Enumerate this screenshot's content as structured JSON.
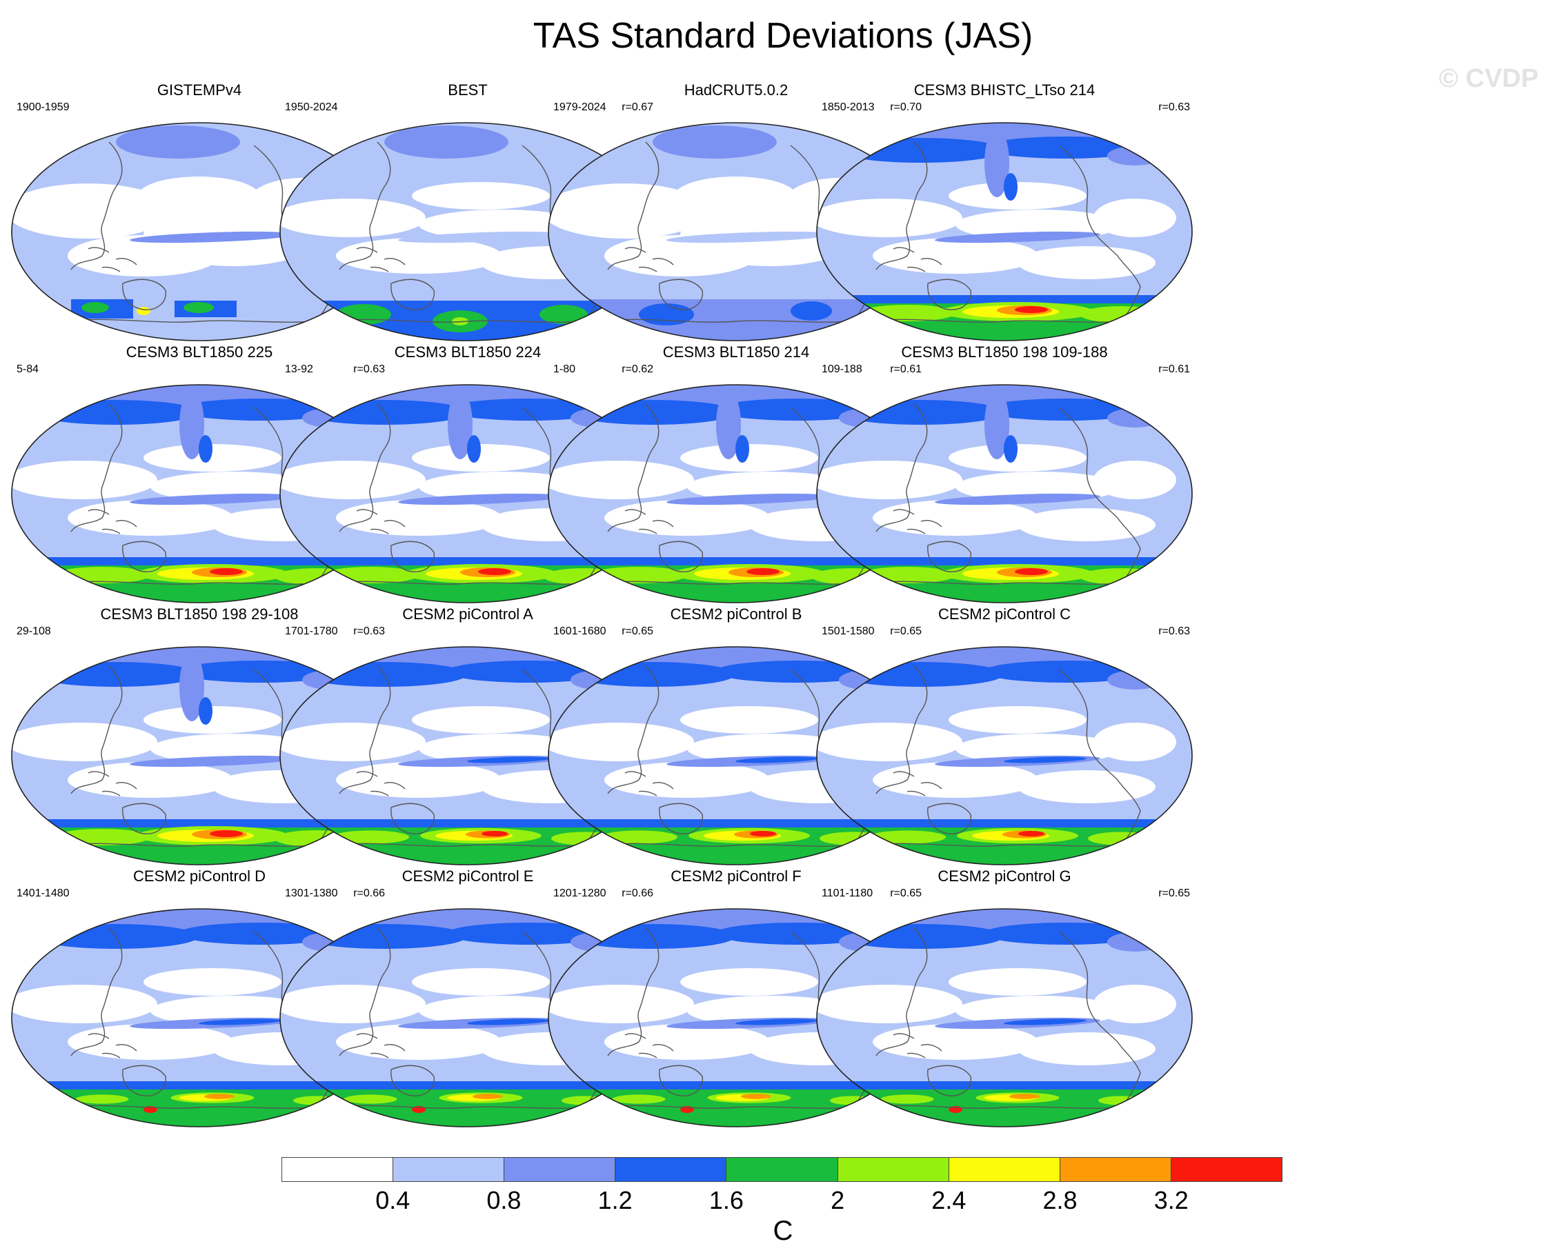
{
  "title": "TAS Standard Deviations (JAS)",
  "watermark": "© CVDP",
  "colorbar": {
    "unit": "C",
    "ticks": [
      "0.4",
      "0.8",
      "1.2",
      "1.6",
      "2",
      "2.4",
      "2.8",
      "3.2"
    ],
    "colors": [
      "#ffffff",
      "#b3c6f9",
      "#7b92f2",
      "#1e60f0",
      "#19bc3c",
      "#96f00f",
      "#fbfb0a",
      "#fd9a05",
      "#f91a0d"
    ]
  },
  "panels": [
    {
      "title": "GISTEMPv4",
      "period": "1900-1959",
      "corr": "",
      "regime": "obs_sparse"
    },
    {
      "title": "BEST",
      "period": "1950-2024",
      "corr": "r=0.67",
      "regime": "obs_best"
    },
    {
      "title": "HadCRUT5.0.2",
      "period": "1979-2024",
      "corr": "r=0.70",
      "regime": "obs_had"
    },
    {
      "title": "CESM3 BHISTC_LTso 214",
      "period": "1850-2013",
      "corr": "r=0.63",
      "regime": "model_strong"
    },
    {
      "title": "CESM3 BLT1850 225",
      "period": "5-84",
      "corr": "r=0.63",
      "regime": "model_strong"
    },
    {
      "title": "CESM3 BLT1850 224",
      "period": "13-92",
      "corr": "r=0.62",
      "regime": "model_strong"
    },
    {
      "title": "CESM3 BLT1850 214",
      "period": "1-80",
      "corr": "r=0.61",
      "regime": "model_strong"
    },
    {
      "title": "CESM3 BLT1850 198 109-188",
      "period": "109-188",
      "corr": "r=0.61",
      "regime": "model_strong"
    },
    {
      "title": "CESM3 BLT1850 198 29-108",
      "period": "29-108",
      "corr": "r=0.63",
      "regime": "model_strong"
    },
    {
      "title": "CESM2 piControl A",
      "period": "1701-1780",
      "corr": "r=0.65",
      "regime": "model_mid"
    },
    {
      "title": "CESM2 piControl B",
      "period": "1601-1680",
      "corr": "r=0.65",
      "regime": "model_mid"
    },
    {
      "title": "CESM2 piControl C",
      "period": "1501-1580",
      "corr": "r=0.63",
      "regime": "model_mid"
    },
    {
      "title": "CESM2 piControl D",
      "period": "1401-1480",
      "corr": "r=0.66",
      "regime": "model_weak"
    },
    {
      "title": "CESM2 piControl E",
      "period": "1301-1380",
      "corr": "r=0.66",
      "regime": "model_weak"
    },
    {
      "title": "CESM2 piControl F",
      "period": "1201-1280",
      "corr": "r=0.65",
      "regime": "model_weak"
    },
    {
      "title": "CESM2 piControl G",
      "period": "1101-1180",
      "corr": "r=0.65",
      "regime": "model_weak"
    }
  ]
}
